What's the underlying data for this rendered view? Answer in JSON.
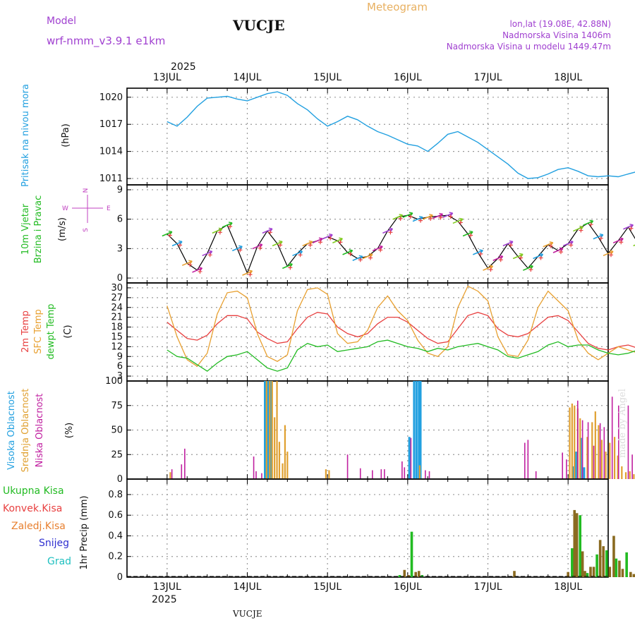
{
  "header": {
    "model_label": "Model",
    "model_name": "wrf-nmm_v3.9.1  e1km",
    "station": "VUCJE",
    "product": "Meteogram",
    "coords": "lon,lat (19.08E, 42.88N)",
    "elevation": "Nadmorska Visina 1406m",
    "model_elevation": "Nadmorska Visina u modelu 1449.47m",
    "footer_station": "VUCJE",
    "credit": "made by Angel"
  },
  "colors": {
    "pressure": "#22a0e0",
    "temp2m": "#e84040",
    "sfc": "#e8a030",
    "dewpt": "#22bb22",
    "high_cloud": "#22a0e0",
    "mid_cloud": "#e0a030",
    "low_cloud": "#c020a0",
    "grid": "#999999",
    "model_purple": "#a040d0"
  },
  "time_axis": {
    "year": "2025",
    "days": [
      "13JUL",
      "14JUL",
      "15JUL",
      "16JUL",
      "17JUL",
      "18JUL"
    ]
  },
  "chart_data": [
    {
      "id": "pressure",
      "type": "line",
      "title": "Pritisak na nivou mora",
      "ylabel": "(hPa)",
      "yticks": [
        1011,
        1014,
        1017,
        1020
      ],
      "ylim": [
        1010.3,
        1021.0
      ],
      "xlim": [
        0,
        6
      ],
      "grid": true,
      "x": [
        0,
        0.125,
        0.25,
        0.375,
        0.5,
        0.625,
        0.75,
        0.875,
        1,
        1.125,
        1.25,
        1.375,
        1.5,
        1.625,
        1.75,
        1.875,
        2,
        2.125,
        2.25,
        2.375,
        2.5,
        2.625,
        2.75,
        2.875,
        3,
        3.125,
        3.25,
        3.375,
        3.5,
        3.625,
        3.75,
        3.875,
        4,
        4.125,
        4.25,
        4.375,
        4.5,
        4.625,
        4.75,
        4.875,
        5,
        5.125,
        5.25,
        5.375,
        5.5,
        5.625,
        5.75,
        5.875,
        6
      ],
      "values": [
        1017.3,
        1016.8,
        1017.8,
        1019.0,
        1019.9,
        1020.0,
        1020.1,
        1019.8,
        1019.6,
        1020.0,
        1020.4,
        1020.6,
        1020.2,
        1019.3,
        1018.6,
        1017.6,
        1016.8,
        1017.3,
        1017.9,
        1017.5,
        1016.8,
        1016.2,
        1015.8,
        1015.3,
        1014.8,
        1014.6,
        1014.0,
        1014.9,
        1015.9,
        1016.2,
        1015.6,
        1015.0,
        1014.2,
        1013.4,
        1012.6,
        1011.6,
        1011.0,
        1011.1,
        1011.5,
        1012.0,
        1012.2,
        1011.8,
        1011.3,
        1011.2,
        1011.3,
        1011.2,
        1011.5,
        1011.8,
        1012.1
      ]
    },
    {
      "id": "wind",
      "type": "line",
      "title": "10m Vjetar Brzina i Pravac",
      "ylabel": "(m/s)",
      "compass": [
        "N",
        "W",
        "E",
        "S"
      ],
      "yticks": [
        0,
        3,
        6,
        9
      ],
      "ylim": [
        -0.5,
        9.5
      ],
      "xlim": [
        0,
        6
      ],
      "grid": true,
      "series": [
        {
          "x": [
            0,
            0.125,
            0.25,
            0.375,
            0.5,
            0.625,
            0.75,
            0.875,
            1,
            1.125,
            1.25,
            1.375,
            1.5,
            1.625,
            1.75,
            1.875,
            2,
            2.125,
            2.25,
            2.375,
            2.5,
            2.625,
            2.75,
            2.875,
            3,
            3.125,
            3.25,
            3.375,
            3.5,
            3.625,
            3.75,
            3.875,
            4,
            4.125,
            4.25,
            4.375,
            4.5,
            4.625,
            4.75,
            4.875,
            5,
            5.125,
            5.25,
            5.375,
            5.5,
            5.625,
            5.75,
            5.875,
            6
          ],
          "values": [
            4.5,
            3.5,
            1.5,
            0.8,
            2.5,
            4.8,
            5.4,
            3.0,
            0.5,
            3.2,
            4.8,
            3.5,
            1.2,
            2.5,
            3.5,
            3.8,
            4.2,
            3.8,
            2.6,
            2.0,
            2.2,
            3.0,
            4.8,
            6.2,
            6.4,
            6.0,
            6.2,
            6.3,
            6.4,
            5.8,
            4.5,
            2.6,
            1.0,
            2.0,
            3.5,
            2.2,
            1.0,
            2.2,
            3.4,
            2.8,
            3.5,
            5.0,
            5.6,
            4.2,
            2.5,
            3.8,
            5.2,
            3.5,
            2.5
          ]
        }
      ]
    },
    {
      "id": "temperature",
      "type": "line",
      "title": "2m Temp / SFC Temp / dewpt Temp",
      "ylabel": "(C)",
      "yticks": [
        3,
        6,
        9,
        12,
        15,
        18,
        21,
        24,
        27,
        30
      ],
      "ylim": [
        1.5,
        31.5
      ],
      "xlim": [
        0,
        6
      ],
      "grid": true,
      "x": [
        0,
        0.125,
        0.25,
        0.375,
        0.5,
        0.625,
        0.75,
        0.875,
        1,
        1.125,
        1.25,
        1.375,
        1.5,
        1.625,
        1.75,
        1.875,
        2,
        2.125,
        2.25,
        2.375,
        2.5,
        2.625,
        2.75,
        2.875,
        3,
        3.125,
        3.25,
        3.375,
        3.5,
        3.625,
        3.75,
        3.875,
        4,
        4.125,
        4.25,
        4.375,
        4.5,
        4.625,
        4.75,
        4.875,
        5,
        5.125,
        5.25,
        5.375,
        5.5,
        5.625,
        5.75,
        5.875,
        6
      ],
      "series": [
        {
          "name": "2m Temp",
          "values": [
            19.5,
            17.0,
            14.5,
            14.0,
            15.5,
            19.0,
            21.5,
            21.5,
            20.5,
            16.5,
            14.5,
            13.0,
            13.5,
            17.5,
            21.0,
            22.5,
            22.0,
            18.0,
            16.0,
            15.0,
            16.0,
            19.0,
            21.0,
            21.0,
            19.5,
            17.0,
            14.5,
            13.0,
            13.5,
            17.5,
            21.5,
            22.5,
            21.5,
            17.5,
            15.5,
            15.0,
            16.0,
            18.5,
            21.0,
            21.5,
            20.0,
            16.5,
            13.0,
            11.5,
            11.0,
            12.0,
            12.5,
            11.5,
            19.0
          ]
        },
        {
          "name": "SFC Temp",
          "values": [
            24.5,
            15.0,
            8.0,
            6.0,
            10.0,
            22.0,
            28.5,
            29.0,
            27.0,
            16.0,
            9.0,
            7.5,
            9.5,
            23.0,
            29.5,
            30.0,
            28.0,
            16.0,
            13.0,
            13.5,
            17.0,
            24.0,
            27.5,
            23.0,
            20.0,
            14.0,
            10.0,
            9.0,
            12.0,
            24.0,
            30.5,
            29.0,
            26.0,
            15.0,
            9.5,
            9.0,
            14.0,
            24.0,
            29.0,
            26.0,
            23.0,
            14.0,
            10.0,
            8.0,
            10.0,
            12.0,
            11.0,
            10.0,
            26.5
          ]
        },
        {
          "name": "dewpt Temp",
          "values": [
            11.0,
            9.0,
            8.5,
            6.5,
            4.5,
            7.0,
            9.0,
            9.5,
            10.5,
            8.0,
            5.5,
            4.5,
            5.5,
            11.0,
            13.0,
            12.0,
            12.5,
            10.5,
            11.0,
            11.5,
            12.0,
            13.5,
            14.0,
            13.0,
            12.0,
            11.5,
            10.5,
            11.5,
            11.0,
            12.0,
            12.5,
            13.0,
            12.0,
            11.0,
            9.0,
            8.5,
            9.5,
            10.5,
            12.5,
            13.5,
            12.0,
            12.5,
            12.5,
            11.0,
            10.0,
            9.5,
            10.0,
            11.0,
            13.5
          ]
        }
      ]
    },
    {
      "id": "clouds",
      "type": "bar",
      "title": "Visoka Oblacnost / Srednja Oblacnost / Niska Oblacnost",
      "ylabel": "(%)",
      "yticks": [
        0,
        25,
        50,
        75,
        100
      ],
      "ylim": [
        0,
        100
      ],
      "xlim": [
        0,
        6
      ],
      "grid": true,
      "series": [
        {
          "name": "Visoka Oblacnost",
          "points": [
            [
              1.22,
              100
            ],
            [
              1.24,
              100
            ],
            [
              1.26,
              100
            ],
            [
              1.29,
              100
            ],
            [
              3.02,
              43
            ],
            [
              3.08,
              100
            ],
            [
              3.11,
              100
            ],
            [
              3.14,
              100
            ],
            [
              3.16,
              100
            ],
            [
              5.07,
              13
            ],
            [
              5.1,
              28
            ],
            [
              5.16,
              42
            ],
            [
              5.2,
              12
            ]
          ]
        },
        {
          "name": "Srednja Oblacnost",
          "points": [
            [
              0.04,
              7
            ],
            [
              1.24,
              100
            ],
            [
              1.28,
              100
            ],
            [
              1.31,
              100
            ],
            [
              1.34,
              63
            ],
            [
              1.37,
              100
            ],
            [
              1.4,
              38
            ],
            [
              1.44,
              16
            ],
            [
              1.47,
              55
            ],
            [
              1.5,
              28
            ],
            [
              1.98,
              10
            ],
            [
              2.02,
              9
            ],
            [
              3.15,
              14
            ],
            [
              5.02,
              73
            ],
            [
              5.05,
              77
            ],
            [
              5.08,
              75
            ],
            [
              5.12,
              72
            ],
            [
              5.15,
              62
            ],
            [
              5.24,
              43
            ],
            [
              5.3,
              58
            ],
            [
              5.34,
              69
            ],
            [
              5.38,
              55
            ],
            [
              5.42,
              40
            ],
            [
              5.47,
              28
            ],
            [
              5.52,
              37
            ],
            [
              5.58,
              43
            ],
            [
              5.62,
              24
            ],
            [
              5.67,
              13
            ],
            [
              5.72,
              7
            ],
            [
              5.77,
              8
            ],
            [
              5.82,
              5
            ],
            [
              5.9,
              7
            ],
            [
              5.96,
              10
            ]
          ]
        },
        {
          "name": "Niska Oblacnost",
          "points": [
            [
              0.06,
              10
            ],
            [
              0.18,
              15
            ],
            [
              0.22,
              31
            ],
            [
              1.08,
              23
            ],
            [
              1.11,
              8
            ],
            [
              1.18,
              6
            ],
            [
              2.25,
              25
            ],
            [
              2.41,
              11
            ],
            [
              2.56,
              9
            ],
            [
              2.67,
              10
            ],
            [
              2.71,
              10
            ],
            [
              2.93,
              18
            ],
            [
              2.96,
              12
            ],
            [
              3.04,
              42
            ],
            [
              3.22,
              9
            ],
            [
              3.27,
              8
            ],
            [
              4.46,
              37
            ],
            [
              4.5,
              40
            ],
            [
              4.6,
              8
            ],
            [
              4.93,
              27
            ],
            [
              4.98,
              20
            ],
            [
              5.12,
              80
            ],
            [
              5.18,
              60
            ],
            [
              5.25,
              58
            ],
            [
              5.32,
              34
            ],
            [
              5.4,
              57
            ],
            [
              5.45,
              53
            ],
            [
              5.55,
              84
            ],
            [
              5.63,
              75
            ],
            [
              5.75,
              75
            ],
            [
              5.8,
              25
            ],
            [
              5.86,
              20
            ],
            [
              5.94,
              65
            ]
          ]
        }
      ]
    },
    {
      "id": "precip",
      "type": "bar",
      "title": "1hr Precip (mm)",
      "ylabel": "1hr Precip (mm)",
      "legend": [
        "Ukupna Kisa",
        "Konvek.Kisa",
        "Zaledj.Kisa",
        "Snijeg",
        "Grad"
      ],
      "yticks": [
        0,
        0.2,
        0.4,
        0.6,
        0.8
      ],
      "ylim": [
        0,
        0.95
      ],
      "xlim": [
        0,
        6
      ],
      "grid": true,
      "points": [
        [
          2.9,
          0.02
        ],
        [
          2.96,
          0.07
        ],
        [
          3.01,
          0.02
        ],
        [
          3.05,
          0.44
        ],
        [
          3.1,
          0.05
        ],
        [
          3.14,
          0.06
        ],
        [
          3.18,
          0.02
        ],
        [
          4.33,
          0.06
        ],
        [
          5.0,
          0.05
        ],
        [
          5.05,
          0.28
        ],
        [
          5.08,
          0.65
        ],
        [
          5.11,
          0.62
        ],
        [
          5.15,
          0.6
        ],
        [
          5.18,
          0.25
        ],
        [
          5.21,
          0.06
        ],
        [
          5.24,
          0.04
        ],
        [
          5.28,
          0.1
        ],
        [
          5.32,
          0.1
        ],
        [
          5.36,
          0.22
        ],
        [
          5.4,
          0.36
        ],
        [
          5.44,
          0.3
        ],
        [
          5.48,
          0.26
        ],
        [
          5.52,
          0.1
        ],
        [
          5.57,
          0.4
        ],
        [
          5.6,
          0.18
        ],
        [
          5.64,
          0.16
        ],
        [
          5.68,
          0.08
        ],
        [
          5.73,
          0.24
        ],
        [
          5.78,
          0.05
        ],
        [
          5.82,
          0.03
        ],
        [
          5.85,
          0.05
        ],
        [
          5.9,
          0.26
        ],
        [
          5.95,
          0.07
        ]
      ]
    }
  ]
}
